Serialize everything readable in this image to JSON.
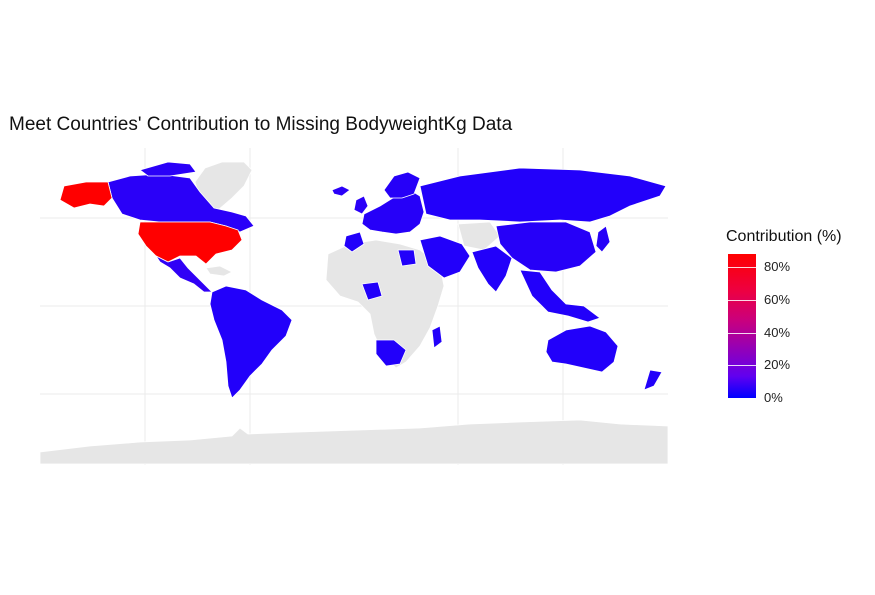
{
  "title": "Meet Countries' Contribution to Missing BodyweightKg Data",
  "legend": {
    "title": "Contribution (%)",
    "ticks": [
      "0%",
      "20%",
      "40%",
      "60%",
      "80%"
    ],
    "range": [
      0,
      88
    ],
    "colors": {
      "low": "#0000ff",
      "mid": "#cc007a",
      "high": "#ff0000"
    }
  },
  "colors": {
    "no_data": "#e6e6e6",
    "border": "#ffffff",
    "grid": "#ebebeb",
    "highlight": "#ff0000"
  },
  "map_data": {
    "highlighted_country": "United States",
    "highlighted_value_pct": 88,
    "other_contributing_value_pct": 1
  }
}
